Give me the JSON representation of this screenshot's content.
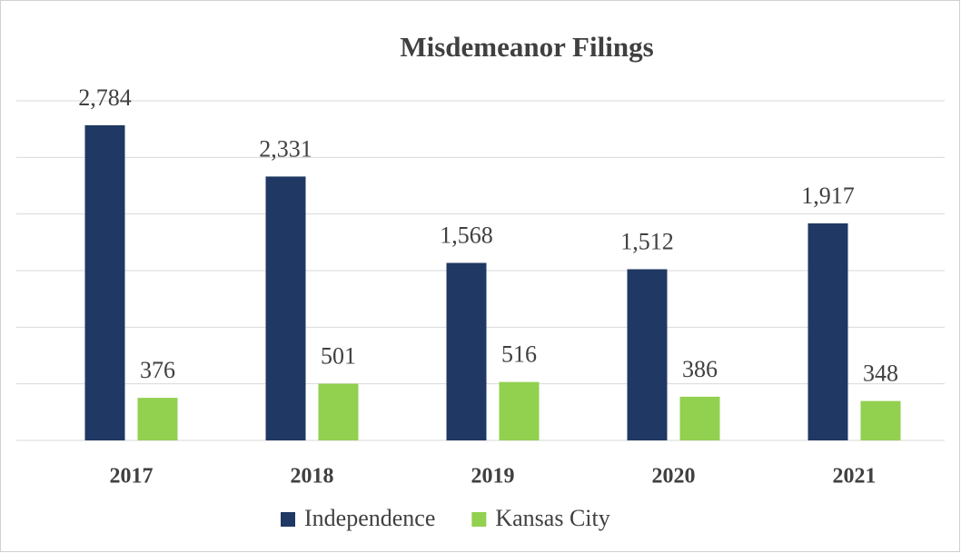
{
  "chart_data": {
    "type": "bar",
    "title": "Misdemeanor Filings",
    "categories": [
      "2017",
      "2018",
      "2019",
      "2020",
      "2021"
    ],
    "series": [
      {
        "name": "Independence",
        "color": "#1f3864",
        "values": [
          2784,
          2331,
          1568,
          1512,
          1917
        ],
        "value_labels": [
          "2,784",
          "2,331",
          "1,568",
          "1,512",
          "1,917"
        ]
      },
      {
        "name": "Kansas City",
        "color": "#92d050",
        "values": [
          376,
          501,
          516,
          386,
          348
        ]
      }
    ],
    "ylim": [
      0,
      3000
    ],
    "yticks": [
      0,
      500,
      1000,
      1500,
      2000,
      2500,
      3000
    ],
    "grid": true,
    "legend": "bottom"
  }
}
